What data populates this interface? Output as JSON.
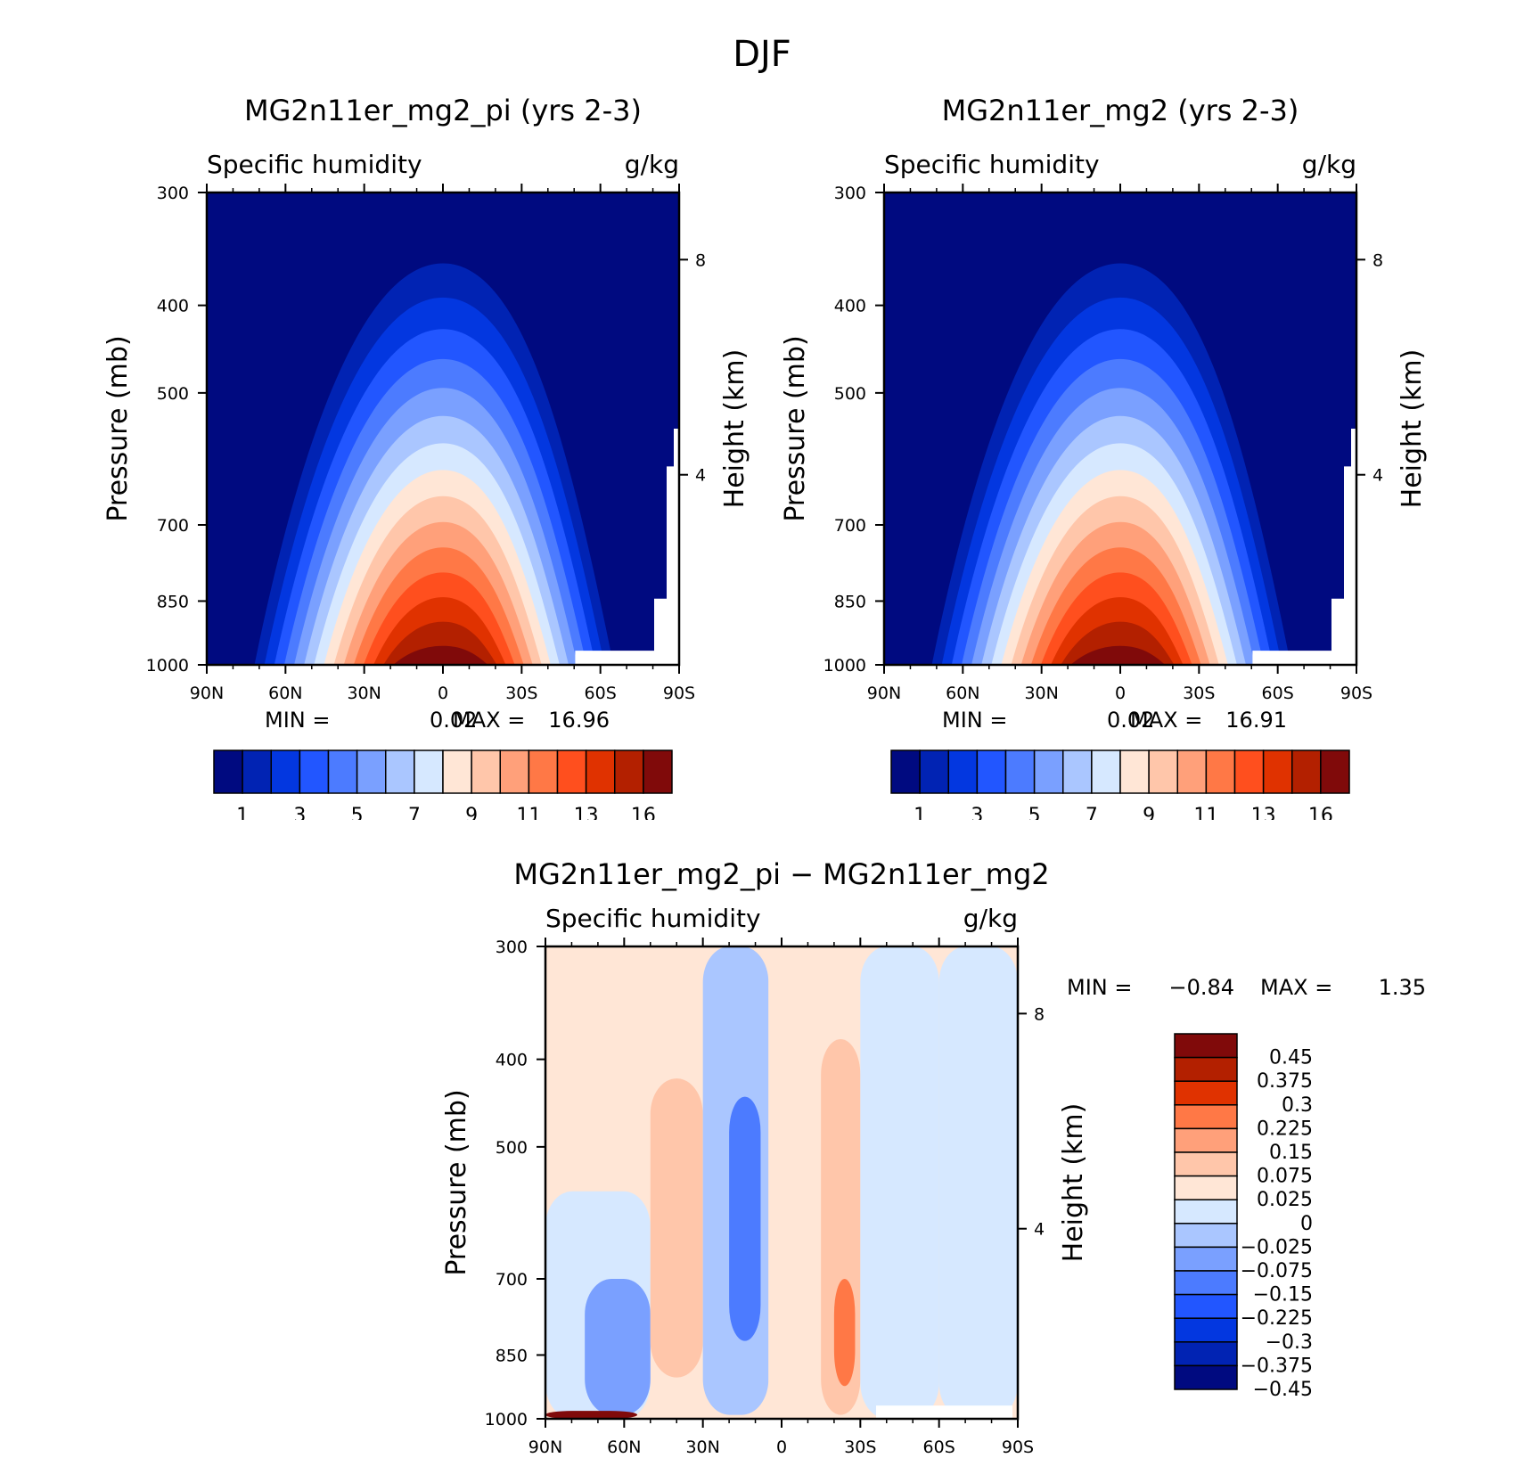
{
  "figure_title": "DJF",
  "colors": {
    "abs_scale": [
      "#000a80",
      "#0123b3",
      "#0337e0",
      "#2256ff",
      "#4c7bff",
      "#7aa0ff",
      "#aac6ff",
      "#d6e8ff",
      "#ffe6d6",
      "#ffc6aa",
      "#ffa07a",
      "#ff7846",
      "#ff4f1e",
      "#e03200",
      "#b32000",
      "#800a0a"
    ],
    "diff_scale": [
      "#000a80",
      "#0123b3",
      "#0337e0",
      "#2256ff",
      "#4c7bff",
      "#7aa0ff",
      "#aac6ff",
      "#d6e8ff",
      "#ffe6d6",
      "#ffc6aa",
      "#ffa07a",
      "#ff7846",
      "#e03200",
      "#b32000",
      "#800a0a"
    ]
  },
  "chart_data": [
    {
      "type": "heatmap",
      "title": "MG2n11er_mg2_pi (yrs 2-3)",
      "subtitle_left": "Specific humidity",
      "subtitle_right": "g/kg",
      "ylabel": "Pressure (mb)",
      "ylabel_right": "Height (km)",
      "x_ticks": [
        "90N",
        "60N",
        "30N",
        "0",
        "30S",
        "60S",
        "90S"
      ],
      "y_ticks": [
        "300",
        "400",
        "500",
        "700",
        "850",
        "1000"
      ],
      "y_ticks_right": [
        "8",
        "4"
      ],
      "ylim": [
        1000,
        300
      ],
      "stats": {
        "min_label": "MIN =",
        "min": "0.02",
        "max_label": "MAX =",
        "max": "16.96"
      },
      "colorbar_labels": [
        "1",
        "3",
        "5",
        "7",
        "9",
        "11",
        "13",
        "16"
      ],
      "levels": [
        1,
        2,
        3,
        4,
        5,
        6,
        7,
        8,
        9,
        10,
        11,
        12,
        13,
        14,
        16
      ],
      "max_value": 16.96,
      "max_location": {
        "lat": 5,
        "pressure": 990
      }
    },
    {
      "type": "heatmap",
      "title": "MG2n11er_mg2 (yrs 2-3)",
      "subtitle_left": "Specific humidity",
      "subtitle_right": "g/kg",
      "ylabel": "Pressure (mb)",
      "ylabel_right": "Height (km)",
      "x_ticks": [
        "90N",
        "60N",
        "30N",
        "0",
        "30S",
        "60S",
        "90S"
      ],
      "y_ticks": [
        "300",
        "400",
        "500",
        "700",
        "850",
        "1000"
      ],
      "y_ticks_right": [
        "8",
        "4"
      ],
      "ylim": [
        1000,
        300
      ],
      "stats": {
        "min_label": "MIN =",
        "min": "0.02",
        "max_label": "MAX =",
        "max": "16.91"
      },
      "colorbar_labels": [
        "1",
        "3",
        "5",
        "7",
        "9",
        "11",
        "13",
        "16"
      ],
      "levels": [
        1,
        2,
        3,
        4,
        5,
        6,
        7,
        8,
        9,
        10,
        11,
        12,
        13,
        14,
        16
      ],
      "max_value": 16.91,
      "max_location": {
        "lat": 5,
        "pressure": 990
      }
    },
    {
      "type": "heatmap",
      "title": "MG2n11er_mg2_pi − MG2n11er_mg2",
      "subtitle_left": "Specific humidity",
      "subtitle_right": "g/kg",
      "ylabel": "Pressure (mb)",
      "ylabel_right": "Height (km)",
      "x_ticks": [
        "90N",
        "60N",
        "30N",
        "0",
        "30S",
        "60S",
        "90S"
      ],
      "y_ticks": [
        "300",
        "400",
        "500",
        "700",
        "850",
        "1000"
      ],
      "y_ticks_right": [
        "8",
        "4"
      ],
      "ylim": [
        1000,
        300
      ],
      "stats": {
        "min_label": "MIN =",
        "min": "−0.84",
        "max_label": "MAX =",
        "max": "1.35"
      },
      "colorbar_labels": [
        "0.45",
        "0.375",
        "0.3",
        "0.225",
        "0.15",
        "0.075",
        "0.025",
        "0",
        "−0.025",
        "−0.075",
        "−0.15",
        "−0.225",
        "−0.3",
        "−0.375",
        "−0.45"
      ],
      "bands": [
        {
          "lat_from": 90,
          "lat_to": 50,
          "p_from": 300,
          "p_to": 560,
          "level": 0.01
        },
        {
          "lat_from": 90,
          "lat_to": 50,
          "p_from": 560,
          "p_to": 1000,
          "level": -0.02
        },
        {
          "lat_from": 75,
          "lat_to": 50,
          "p_from": 700,
          "p_to": 990,
          "level": -0.1
        },
        {
          "lat_from": 50,
          "lat_to": 30,
          "p_from": 420,
          "p_to": 900,
          "level": 0.08
        },
        {
          "lat_from": 30,
          "lat_to": 5,
          "p_from": 300,
          "p_to": 990,
          "level": -0.05
        },
        {
          "lat_from": 20,
          "lat_to": 8,
          "p_from": 440,
          "p_to": 820,
          "level": -0.2
        },
        {
          "lat_from": 5,
          "lat_to": -10,
          "p_from": 300,
          "p_to": 990,
          "level": 0.06
        },
        {
          "lat_from": -15,
          "lat_to": -30,
          "p_from": 380,
          "p_to": 990,
          "level": 0.12
        },
        {
          "lat_from": -20,
          "lat_to": -28,
          "p_from": 700,
          "p_to": 920,
          "level": 0.25
        },
        {
          "lat_from": -30,
          "lat_to": -60,
          "p_from": 300,
          "p_to": 1000,
          "level": -0.02
        },
        {
          "lat_from": -60,
          "lat_to": -90,
          "p_from": 300,
          "p_to": 1000,
          "level": -0.02
        },
        {
          "lat_from": 90,
          "lat_to": 55,
          "p_from": 980,
          "p_to": 1000,
          "level": 0.45
        }
      ]
    }
  ]
}
